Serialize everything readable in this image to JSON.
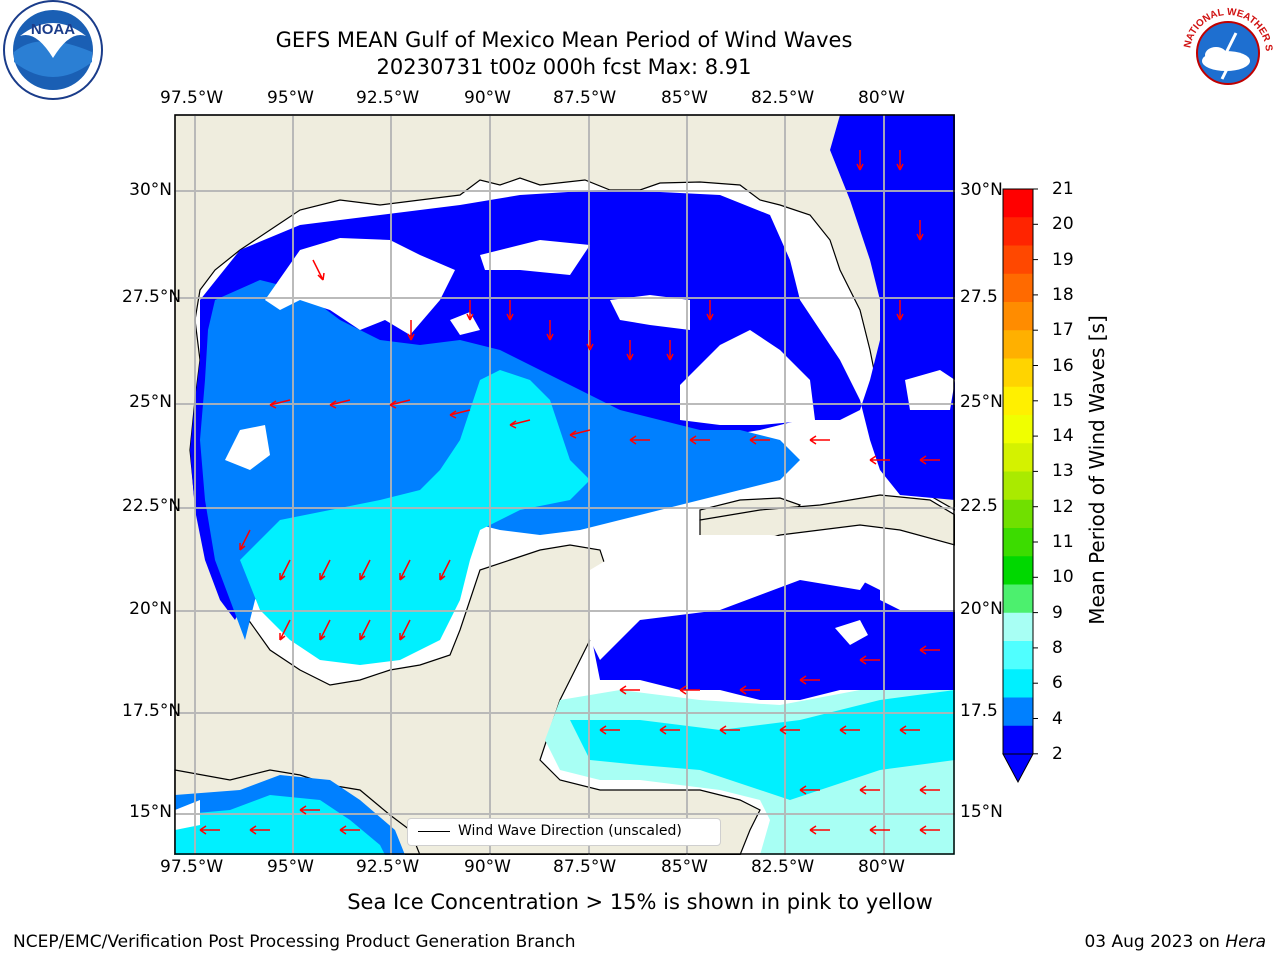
{
  "title": {
    "line1": "GEFS MEAN Gulf of Mexico Mean Period of Wind Waves",
    "line2": "20230731 t00z 000h fcst   Max: 8.91"
  },
  "logos": {
    "left": {
      "icon": "noaa-logo",
      "text": "NOAA"
    },
    "right": {
      "icon": "national-weather-service-logo",
      "text": "NATIONAL WEATHER SERVICE"
    }
  },
  "axes": {
    "lon_labels": [
      "97.5°W",
      "95°W",
      "92.5°W",
      "90°W",
      "87.5°W",
      "85°W",
      "82.5°W",
      "80°W"
    ],
    "lat_labels_left": [
      "30°N",
      "27.5°N",
      "25°N",
      "22.5°N",
      "20°N",
      "17.5°N",
      "15°N"
    ],
    "lat_labels_right": [
      "30°N",
      "27.5",
      "25°N",
      "22.5",
      "20°N",
      "17.5",
      "15°N"
    ]
  },
  "colorbar": {
    "label": "Mean Period of Wind Waves [s]",
    "ticks": [
      "21",
      "20",
      "19",
      "18",
      "17",
      "16",
      "15",
      "14",
      "13",
      "12",
      "11",
      "10",
      "9",
      "8",
      "6",
      "4",
      "2"
    ],
    "colors_top_to_bottom": [
      "#ff0000",
      "#ff2400",
      "#ff4800",
      "#ff6a00",
      "#ff8c00",
      "#ffb000",
      "#ffd400",
      "#fff000",
      "#f0ff00",
      "#d4f200",
      "#aaea00",
      "#70e000",
      "#3cdc00",
      "#00d800",
      "#4cf06e",
      "#a8fff4",
      "#50ffff",
      "#00f0ff",
      "#0080ff",
      "#0000ff"
    ],
    "extend": "min"
  },
  "legend": {
    "label": "Wind Wave Direction (unscaled)"
  },
  "note": "Sea Ice Concentration > 15% is shown in pink to yellow",
  "footer": {
    "left": "NCEP/EMC/Verification Post Processing Product Generation Branch",
    "right_date": "03 Aug 2023 on ",
    "right_host": "Hera"
  },
  "colors": {
    "land": "#efedde",
    "coast": "#000000",
    "grid": "#b4b4b4",
    "arrow": "#ff0000",
    "period_2_4": "#0000ff",
    "period_4_6": "#0080ff",
    "period_6_8": "#00f0ff",
    "period_8_9": "#a8fff4"
  }
}
